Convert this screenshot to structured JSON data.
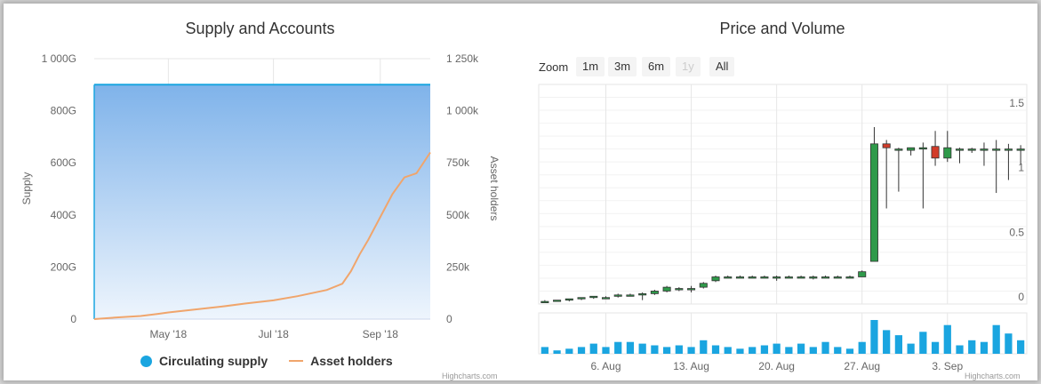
{
  "left": {
    "title": "Supply and Accounts",
    "y_left_label": "Supply",
    "y_right_label": "Asset holders",
    "y_left_ticks": [
      "1 000G",
      "800G",
      "600G",
      "400G",
      "200G",
      "0"
    ],
    "y_right_ticks": [
      "1 250k",
      "1 000k",
      "750k",
      "500k",
      "250k",
      "0"
    ],
    "x_ticks": [
      "May '18",
      "Jul '18",
      "Sep '18"
    ],
    "legend": [
      "Circulating supply",
      "Asset holders"
    ],
    "credits": "Highcharts.com"
  },
  "right": {
    "title": "Price and Volume",
    "zoom_label": "Zoom",
    "zoom_buttons": [
      "1m",
      "3m",
      "6m",
      "1y",
      "All"
    ],
    "y_ticks": [
      "1.5",
      "1",
      "0.5",
      "0"
    ],
    "x_ticks": [
      "6. Aug",
      "13. Aug",
      "20. Aug",
      "27. Aug",
      "3. Sep"
    ],
    "credits": "Highcharts.com"
  },
  "colors": {
    "supply_fill_top": "#7fb3ea",
    "supply_fill_bottom": "#eef5fd",
    "supply_edge": "#1aa5e0",
    "holders_line": "#f0a56c",
    "candle_up": "#2f9a4a",
    "candle_down": "#d23c2a",
    "volume": "#1aa5e0"
  },
  "chart_data": [
    {
      "type": "area",
      "title": "Supply and Accounts",
      "x_range": [
        "2018-03-19",
        "2018-09-30"
      ],
      "series": [
        {
          "name": "Circulating supply",
          "axis": "left",
          "points": [
            [
              "2018-03-19",
              900
            ],
            [
              "2018-09-30",
              900
            ]
          ],
          "unit": "G"
        },
        {
          "name": "Asset holders",
          "axis": "right",
          "type": "line",
          "points": [
            [
              "2018-03-19",
              0
            ],
            [
              "2018-04-01",
              8
            ],
            [
              "2018-04-15",
              15
            ],
            [
              "2018-04-25",
              25
            ],
            [
              "2018-05-01",
              32
            ],
            [
              "2018-05-15",
              45
            ],
            [
              "2018-06-01",
              60
            ],
            [
              "2018-06-15",
              75
            ],
            [
              "2018-07-01",
              90
            ],
            [
              "2018-07-15",
              110
            ],
            [
              "2018-08-01",
              140
            ],
            [
              "2018-08-10",
              170
            ],
            [
              "2018-08-15",
              230
            ],
            [
              "2018-08-20",
              310
            ],
            [
              "2018-08-25",
              380
            ],
            [
              "2018-09-01",
              490
            ],
            [
              "2018-09-08",
              600
            ],
            [
              "2018-09-15",
              680
            ],
            [
              "2018-09-22",
              700
            ],
            [
              "2018-09-30",
              800
            ]
          ],
          "unit": "k"
        }
      ],
      "ylim_left": [
        0,
        1000
      ],
      "ylim_right": [
        0,
        1250
      ]
    },
    {
      "type": "candlestick",
      "title": "Price and Volume",
      "ylim": [
        0,
        1.7
      ],
      "candles": [
        {
          "d": "2018-08-01",
          "o": 0.02,
          "h": 0.03,
          "l": 0.01,
          "c": 0.02
        },
        {
          "d": "2018-08-02",
          "o": 0.02,
          "h": 0.03,
          "l": 0.02,
          "c": 0.03
        },
        {
          "d": "2018-08-03",
          "o": 0.03,
          "h": 0.04,
          "l": 0.02,
          "c": 0.04
        },
        {
          "d": "2018-08-04",
          "o": 0.04,
          "h": 0.05,
          "l": 0.03,
          "c": 0.05
        },
        {
          "d": "2018-08-05",
          "o": 0.05,
          "h": 0.06,
          "l": 0.04,
          "c": 0.06
        },
        {
          "d": "2018-08-06",
          "o": 0.05,
          "h": 0.06,
          "l": 0.04,
          "c": 0.05
        },
        {
          "d": "2018-08-07",
          "o": 0.06,
          "h": 0.08,
          "l": 0.05,
          "c": 0.07
        },
        {
          "d": "2018-08-08",
          "o": 0.07,
          "h": 0.08,
          "l": 0.06,
          "c": 0.07
        },
        {
          "d": "2018-08-09",
          "o": 0.07,
          "h": 0.09,
          "l": 0.03,
          "c": 0.08
        },
        {
          "d": "2018-08-10",
          "o": 0.08,
          "h": 0.11,
          "l": 0.07,
          "c": 0.1
        },
        {
          "d": "2018-08-11",
          "o": 0.1,
          "h": 0.14,
          "l": 0.09,
          "c": 0.13
        },
        {
          "d": "2018-08-12",
          "o": 0.11,
          "h": 0.13,
          "l": 0.1,
          "c": 0.12
        },
        {
          "d": "2018-08-13",
          "o": 0.11,
          "h": 0.14,
          "l": 0.09,
          "c": 0.12
        },
        {
          "d": "2018-08-14",
          "o": 0.13,
          "h": 0.17,
          "l": 0.12,
          "c": 0.16
        },
        {
          "d": "2018-08-15",
          "o": 0.18,
          "h": 0.22,
          "l": 0.17,
          "c": 0.21
        },
        {
          "d": "2018-08-16",
          "o": 0.21,
          "h": 0.22,
          "l": 0.2,
          "c": 0.21
        },
        {
          "d": "2018-08-17",
          "o": 0.21,
          "h": 0.22,
          "l": 0.2,
          "c": 0.21
        },
        {
          "d": "2018-08-18",
          "o": 0.21,
          "h": 0.22,
          "l": 0.2,
          "c": 0.21
        },
        {
          "d": "2018-08-19",
          "o": 0.21,
          "h": 0.22,
          "l": 0.2,
          "c": 0.21
        },
        {
          "d": "2018-08-20",
          "o": 0.21,
          "h": 0.22,
          "l": 0.18,
          "c": 0.21
        },
        {
          "d": "2018-08-21",
          "o": 0.21,
          "h": 0.22,
          "l": 0.2,
          "c": 0.21
        },
        {
          "d": "2018-08-22",
          "o": 0.21,
          "h": 0.22,
          "l": 0.2,
          "c": 0.21
        },
        {
          "d": "2018-08-23",
          "o": 0.21,
          "h": 0.22,
          "l": 0.19,
          "c": 0.21
        },
        {
          "d": "2018-08-24",
          "o": 0.21,
          "h": 0.22,
          "l": 0.2,
          "c": 0.21
        },
        {
          "d": "2018-08-25",
          "o": 0.21,
          "h": 0.22,
          "l": 0.2,
          "c": 0.21
        },
        {
          "d": "2018-08-26",
          "o": 0.21,
          "h": 0.22,
          "l": 0.2,
          "c": 0.21
        },
        {
          "d": "2018-08-27",
          "o": 0.21,
          "h": 0.26,
          "l": 0.21,
          "c": 0.25
        },
        {
          "d": "2018-08-28",
          "o": 0.33,
          "h": 1.37,
          "l": 0.33,
          "c": 1.24
        },
        {
          "d": "2018-08-29",
          "o": 1.24,
          "h": 1.27,
          "l": 0.74,
          "c": 1.21
        },
        {
          "d": "2018-08-30",
          "o": 1.2,
          "h": 1.21,
          "l": 0.87,
          "c": 1.2
        },
        {
          "d": "2018-08-31",
          "o": 1.19,
          "h": 1.21,
          "l": 1.15,
          "c": 1.21
        },
        {
          "d": "2018-09-01",
          "o": 1.2,
          "h": 1.25,
          "l": 0.74,
          "c": 1.21
        },
        {
          "d": "2018-09-02",
          "o": 1.22,
          "h": 1.34,
          "l": 1.07,
          "c": 1.13
        },
        {
          "d": "2018-09-03",
          "o": 1.13,
          "h": 1.34,
          "l": 1.1,
          "c": 1.21
        },
        {
          "d": "2018-09-04",
          "o": 1.2,
          "h": 1.21,
          "l": 1.09,
          "c": 1.2
        },
        {
          "d": "2018-09-05",
          "o": 1.2,
          "h": 1.21,
          "l": 1.17,
          "c": 1.2
        },
        {
          "d": "2018-09-06",
          "o": 1.2,
          "h": 1.25,
          "l": 1.07,
          "c": 1.2
        },
        {
          "d": "2018-09-07",
          "o": 1.2,
          "h": 1.27,
          "l": 0.86,
          "c": 1.2
        },
        {
          "d": "2018-09-08",
          "o": 1.2,
          "h": 1.24,
          "l": 0.96,
          "c": 1.2
        },
        {
          "d": "2018-09-09",
          "o": 1.2,
          "h": 1.23,
          "l": 1.08,
          "c": 1.2
        }
      ],
      "volume": [
        0.2,
        0.1,
        0.15,
        0.2,
        0.3,
        0.2,
        0.35,
        0.35,
        0.3,
        0.25,
        0.2,
        0.25,
        0.2,
        0.4,
        0.25,
        0.2,
        0.15,
        0.2,
        0.25,
        0.3,
        0.2,
        0.3,
        0.2,
        0.35,
        0.2,
        0.15,
        0.35,
        1.0,
        0.7,
        0.55,
        0.3,
        0.65,
        0.35,
        0.85,
        0.25,
        0.4,
        0.35,
        0.85,
        0.6,
        0.4
      ]
    }
  ]
}
